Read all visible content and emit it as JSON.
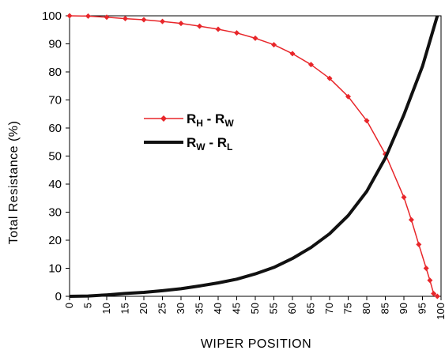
{
  "chart_data": {
    "type": "line",
    "title": "",
    "xlabel": "WIPER POSITION",
    "ylabel": "Total Resistance (%)",
    "xlim": [
      0,
      100
    ],
    "ylim": [
      0,
      100
    ],
    "x_ticks": [
      0,
      5,
      10,
      15,
      20,
      25,
      30,
      35,
      40,
      45,
      50,
      55,
      60,
      65,
      70,
      75,
      80,
      85,
      90,
      95,
      100
    ],
    "y_ticks": [
      0,
      10,
      20,
      30,
      40,
      50,
      60,
      70,
      80,
      90,
      100
    ],
    "grid": false,
    "legend_position": "center-left",
    "series": [
      {
        "name_main": "R",
        "name_sub1": "H",
        "name_mid": " - R",
        "name_sub2": "W",
        "color": "#e8262a",
        "marker": "diamond",
        "x": [
          0,
          5,
          10,
          15,
          20,
          25,
          30,
          35,
          40,
          45,
          50,
          55,
          60,
          65,
          70,
          75,
          80,
          85,
          90,
          92,
          94,
          96,
          97,
          98,
          99
        ],
        "y": [
          100,
          99.9,
          99.5,
          99,
          98.6,
          98,
          97.3,
          96.3,
          95.2,
          93.9,
          92,
          89.7,
          86.5,
          82.6,
          77.7,
          71.2,
          62.6,
          50.7,
          35.3,
          27.3,
          18.5,
          10,
          5.7,
          1,
          0
        ]
      },
      {
        "name_main": "R",
        "name_sub1": "W",
        "name_mid": " - R",
        "name_sub2": "L",
        "color": "#111111",
        "marker": "none",
        "x": [
          0,
          5,
          10,
          15,
          20,
          25,
          30,
          35,
          40,
          45,
          50,
          55,
          60,
          65,
          70,
          75,
          80,
          85,
          90,
          95,
          99
        ],
        "y": [
          0,
          0.1,
          0.5,
          1,
          1.4,
          2,
          2.7,
          3.7,
          4.8,
          6.1,
          8,
          10.3,
          13.5,
          17.4,
          22.3,
          28.8,
          37.4,
          49.3,
          64.7,
          82,
          100
        ]
      }
    ]
  }
}
